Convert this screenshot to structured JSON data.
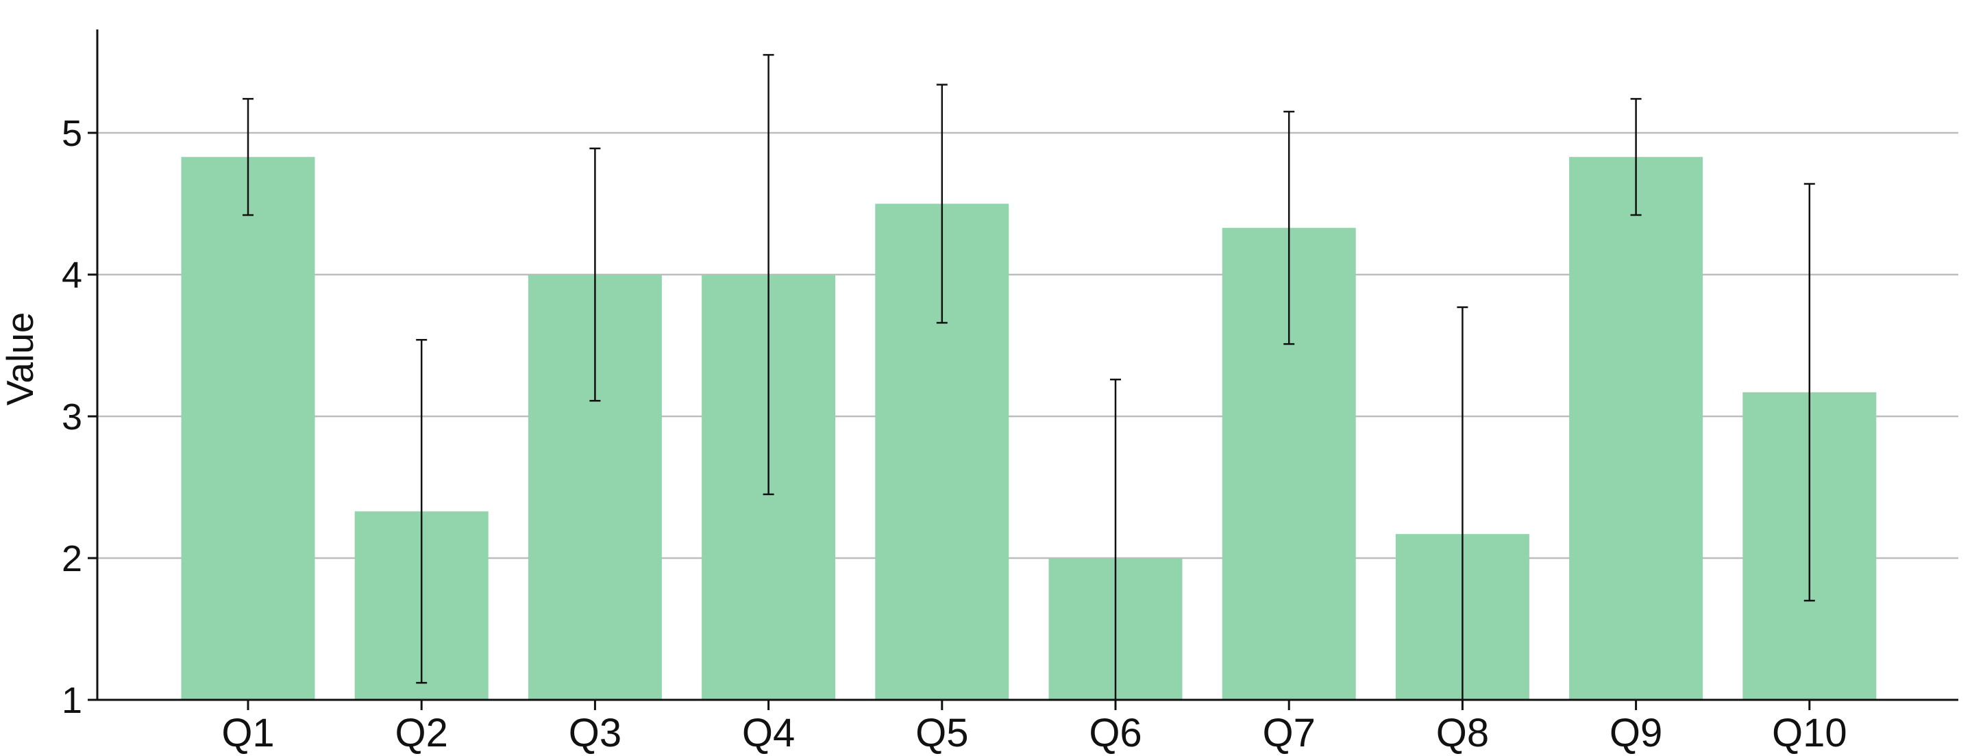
{
  "chart_data": {
    "type": "bar",
    "title": "",
    "xlabel": "",
    "ylabel": "Value",
    "categories": [
      "Q1",
      "Q2",
      "Q3",
      "Q4",
      "Q5",
      "Q6",
      "Q7",
      "Q8",
      "Q9",
      "Q10"
    ],
    "values": [
      4.83,
      2.33,
      4.0,
      4.0,
      4.5,
      2.0,
      4.33,
      2.17,
      4.83,
      3.17
    ],
    "error_bars": {
      "type": "symmetric-std",
      "values": [
        0.41,
        1.21,
        0.89,
        1.55,
        0.84,
        1.26,
        0.82,
        1.6,
        0.41,
        1.47
      ],
      "clip_min": 1,
      "caps": true
    },
    "yticks": [
      1,
      2,
      3,
      4,
      5
    ],
    "yticklabels": [
      "1",
      "2",
      "3",
      "4",
      "5"
    ],
    "ylim": [
      1,
      5.73
    ],
    "grid": "horizontal",
    "axisbelow": true,
    "legend": "none",
    "spines": [
      "left",
      "bottom"
    ],
    "colors": {
      "bar": "#92d5ac",
      "grid": "#bdbdbd",
      "axis": "#111111",
      "error": "#111111",
      "text": "#111111",
      "background": "#ffffff"
    }
  }
}
